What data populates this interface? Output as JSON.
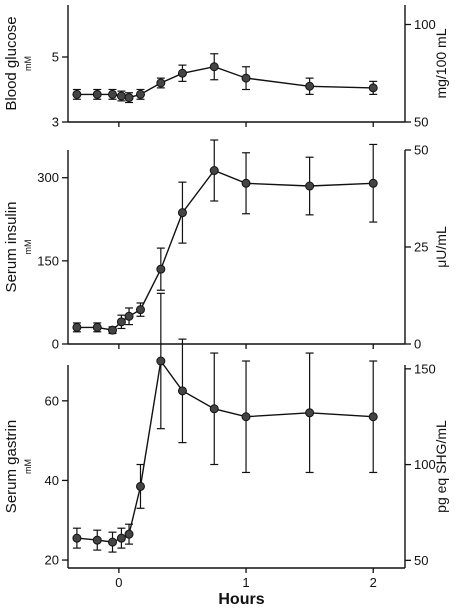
{
  "chart_data": [
    {
      "type": "line",
      "ylabel": "Blood glucose",
      "ylabel_unit": "mM",
      "ylabel_right": "mg/100 mL",
      "ylim": [
        3,
        6.6
      ],
      "ylim_right": [
        50,
        110
      ],
      "yticks": [
        3,
        5
      ],
      "yticks_right": [
        50,
        100
      ],
      "xlim": [
        -0.4,
        2.25
      ],
      "series": [
        {
          "x": [
            -0.33,
            -0.17,
            -0.05,
            0.02,
            0.08,
            0.17,
            0.33,
            0.5,
            0.75,
            1.0,
            1.5,
            2.0
          ],
          "y": [
            3.85,
            3.85,
            3.85,
            3.8,
            3.75,
            3.85,
            4.2,
            4.5,
            4.7,
            4.35,
            4.1,
            4.05
          ],
          "err": [
            0.15,
            0.15,
            0.15,
            0.15,
            0.15,
            0.15,
            0.15,
            0.25,
            0.4,
            0.35,
            0.25,
            0.2
          ]
        }
      ]
    },
    {
      "type": "line",
      "ylabel": "Serum insulin",
      "ylabel_unit": "mM",
      "ylabel_right": "μU/mL",
      "ylim": [
        0,
        350
      ],
      "ylim_right": [
        0,
        50
      ],
      "yticks": [
        0,
        150,
        300
      ],
      "yticks_right": [
        0,
        25,
        50
      ],
      "series": [
        {
          "x": [
            -0.33,
            -0.17,
            -0.05,
            0.02,
            0.08,
            0.17,
            0.33,
            0.5,
            0.75,
            1.0,
            1.5,
            2.0
          ],
          "y": [
            30,
            30,
            25,
            40,
            50,
            62,
            135,
            237,
            313,
            290,
            285,
            290
          ],
          "err": [
            8,
            8,
            6,
            12,
            15,
            12,
            38,
            55,
            55,
            55,
            52,
            70
          ]
        }
      ]
    },
    {
      "type": "line",
      "ylabel": "Serum gastrin",
      "ylabel_unit": "mM",
      "ylabel_right": "pg eq SHG/mL",
      "ylim": [
        18,
        69
      ],
      "ylim_right": [
        46,
        152
      ],
      "yticks": [
        20,
        40,
        60
      ],
      "yticks_right": [
        50,
        100,
        150
      ],
      "xticks": [
        0,
        1,
        2
      ],
      "xlabel": "Hours",
      "series": [
        {
          "x": [
            -0.33,
            -0.17,
            -0.05,
            0.02,
            0.08,
            0.17,
            0.33,
            0.5,
            0.75,
            1.0,
            1.5,
            2.0
          ],
          "y": [
            25.5,
            25,
            24.5,
            25.5,
            26.5,
            38.5,
            70,
            62.5,
            58,
            56,
            57,
            56
          ],
          "err": [
            2.5,
            2.5,
            2.5,
            2.5,
            2.5,
            5.5,
            17,
            13,
            14,
            14,
            15,
            14
          ]
        }
      ]
    }
  ]
}
